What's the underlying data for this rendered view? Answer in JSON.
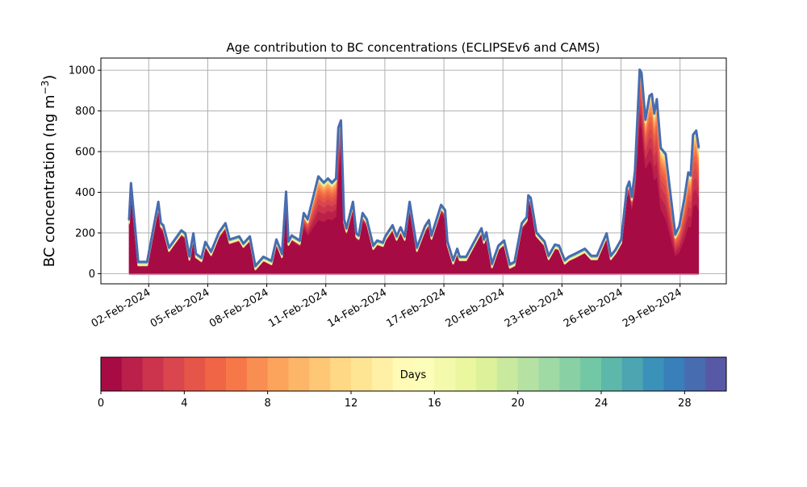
{
  "chart_data": {
    "type": "area",
    "stacked": true,
    "title": "Age contribution to BC concentrations (ECLIPSEv6 and CAMS)",
    "ylabel": "BC concentration (ng m",
    "ylabel_sup": "−3",
    "ylabel_close": ")",
    "xlabel": "",
    "ylim": [
      -50,
      1060
    ],
    "yticks": [
      0,
      200,
      400,
      600,
      800,
      1000
    ],
    "x_unit": "days since 01-Feb-2024 00:00",
    "xlim": [
      -1.43,
      30.35
    ],
    "xticks": [
      {
        "day": 1,
        "label": "02-Feb-2024"
      },
      {
        "day": 4,
        "label": "05-Feb-2024"
      },
      {
        "day": 7,
        "label": "08-Feb-2024"
      },
      {
        "day": 10,
        "label": "11-Feb-2024"
      },
      {
        "day": 13,
        "label": "14-Feb-2024"
      },
      {
        "day": 16,
        "label": "17-Feb-2024"
      },
      {
        "day": 19,
        "label": "20-Feb-2024"
      },
      {
        "day": 22,
        "label": "23-Feb-2024"
      },
      {
        "day": 25,
        "label": "26-Feb-2024"
      },
      {
        "day": 28,
        "label": "29-Feb-2024"
      }
    ],
    "grid": true,
    "total": [
      [
        0.0,
        265
      ],
      [
        0.1,
        447
      ],
      [
        0.47,
        60
      ],
      [
        0.92,
        60
      ],
      [
        1.49,
        355
      ],
      [
        1.62,
        250
      ],
      [
        1.74,
        240
      ],
      [
        2.03,
        130
      ],
      [
        2.66,
        215
      ],
      [
        2.86,
        200
      ],
      [
        3.07,
        87
      ],
      [
        3.27,
        200
      ],
      [
        3.4,
        100
      ],
      [
        3.68,
        80
      ],
      [
        3.88,
        158
      ],
      [
        4.17,
        110
      ],
      [
        4.57,
        205
      ],
      [
        4.9,
        250
      ],
      [
        5.11,
        170
      ],
      [
        5.6,
        185
      ],
      [
        5.81,
        150
      ],
      [
        6.14,
        185
      ],
      [
        6.42,
        40
      ],
      [
        6.83,
        85
      ],
      [
        7.24,
        65
      ],
      [
        7.49,
        170
      ],
      [
        7.77,
        100
      ],
      [
        7.98,
        405
      ],
      [
        8.1,
        160
      ],
      [
        8.27,
        190
      ],
      [
        8.68,
        165
      ],
      [
        8.88,
        300
      ],
      [
        9.08,
        270
      ],
      [
        9.62,
        480
      ],
      [
        9.9,
        450
      ],
      [
        10.11,
        470
      ],
      [
        10.31,
        450
      ],
      [
        10.52,
        470
      ],
      [
        10.64,
        720
      ],
      [
        10.77,
        755
      ],
      [
        10.93,
        270
      ],
      [
        11.05,
        225
      ],
      [
        11.38,
        355
      ],
      [
        11.55,
        200
      ],
      [
        11.67,
        190
      ],
      [
        11.87,
        300
      ],
      [
        12.08,
        270
      ],
      [
        12.41,
        140
      ],
      [
        12.61,
        165
      ],
      [
        12.9,
        155
      ],
      [
        13.02,
        185
      ],
      [
        13.39,
        240
      ],
      [
        13.6,
        185
      ],
      [
        13.8,
        230
      ],
      [
        14.01,
        185
      ],
      [
        14.26,
        355
      ],
      [
        14.63,
        130
      ],
      [
        15.04,
        235
      ],
      [
        15.24,
        265
      ],
      [
        15.37,
        190
      ],
      [
        15.86,
        340
      ],
      [
        16.06,
        315
      ],
      [
        16.18,
        160
      ],
      [
        16.47,
        68
      ],
      [
        16.68,
        125
      ],
      [
        16.8,
        85
      ],
      [
        17.13,
        85
      ],
      [
        17.91,
        225
      ],
      [
        18.03,
        170
      ],
      [
        18.16,
        205
      ],
      [
        18.44,
        50
      ],
      [
        18.77,
        140
      ],
      [
        19.06,
        165
      ],
      [
        19.35,
        48
      ],
      [
        19.59,
        60
      ],
      [
        19.96,
        250
      ],
      [
        20.21,
        280
      ],
      [
        20.29,
        387
      ],
      [
        20.41,
        375
      ],
      [
        20.7,
        205
      ],
      [
        21.11,
        160
      ],
      [
        21.32,
        90
      ],
      [
        21.64,
        145
      ],
      [
        21.85,
        140
      ],
      [
        22.14,
        68
      ],
      [
        22.35,
        85
      ],
      [
        22.67,
        100
      ],
      [
        23.16,
        125
      ],
      [
        23.49,
        90
      ],
      [
        23.78,
        90
      ],
      [
        24.27,
        200
      ],
      [
        24.48,
        90
      ],
      [
        24.72,
        120
      ],
      [
        25.01,
        170
      ],
      [
        25.3,
        425
      ],
      [
        25.42,
        455
      ],
      [
        25.55,
        380
      ],
      [
        25.71,
        505
      ],
      [
        25.95,
        1005
      ],
      [
        26.04,
        990
      ],
      [
        26.24,
        760
      ],
      [
        26.45,
        877
      ],
      [
        26.57,
        885
      ],
      [
        26.69,
        790
      ],
      [
        26.82,
        860
      ],
      [
        27.02,
        620
      ],
      [
        27.27,
        590
      ],
      [
        27.76,
        195
      ],
      [
        27.96,
        235
      ],
      [
        28.21,
        365
      ],
      [
        28.42,
        500
      ],
      [
        28.54,
        485
      ],
      [
        28.66,
        685
      ],
      [
        28.82,
        705
      ],
      [
        28.95,
        620
      ]
    ],
    "first_day_share": [
      [
        0,
        0.85
      ],
      [
        8.5,
        0.85
      ],
      [
        9.6,
        0.55
      ],
      [
        10.6,
        0.6
      ],
      [
        10.8,
        0.85
      ],
      [
        13,
        0.85
      ],
      [
        25.2,
        0.9
      ],
      [
        25.9,
        0.75
      ],
      [
        27.3,
        0.45
      ],
      [
        28.2,
        0.45
      ],
      [
        29,
        0.5
      ]
    ],
    "age_bins_days": 30,
    "colorbar": {
      "label": "Days",
      "ticks": [
        0,
        4,
        8,
        12,
        16,
        20,
        24,
        28
      ],
      "range": [
        0,
        30
      ],
      "colormap_anchors": [
        "#9e0142",
        "#d53e4f",
        "#f46d43",
        "#fdae61",
        "#fee08b",
        "#ffffbf",
        "#e6f598",
        "#abdda4",
        "#66c2a5",
        "#3288bd",
        "#5e4fa2"
      ]
    }
  }
}
